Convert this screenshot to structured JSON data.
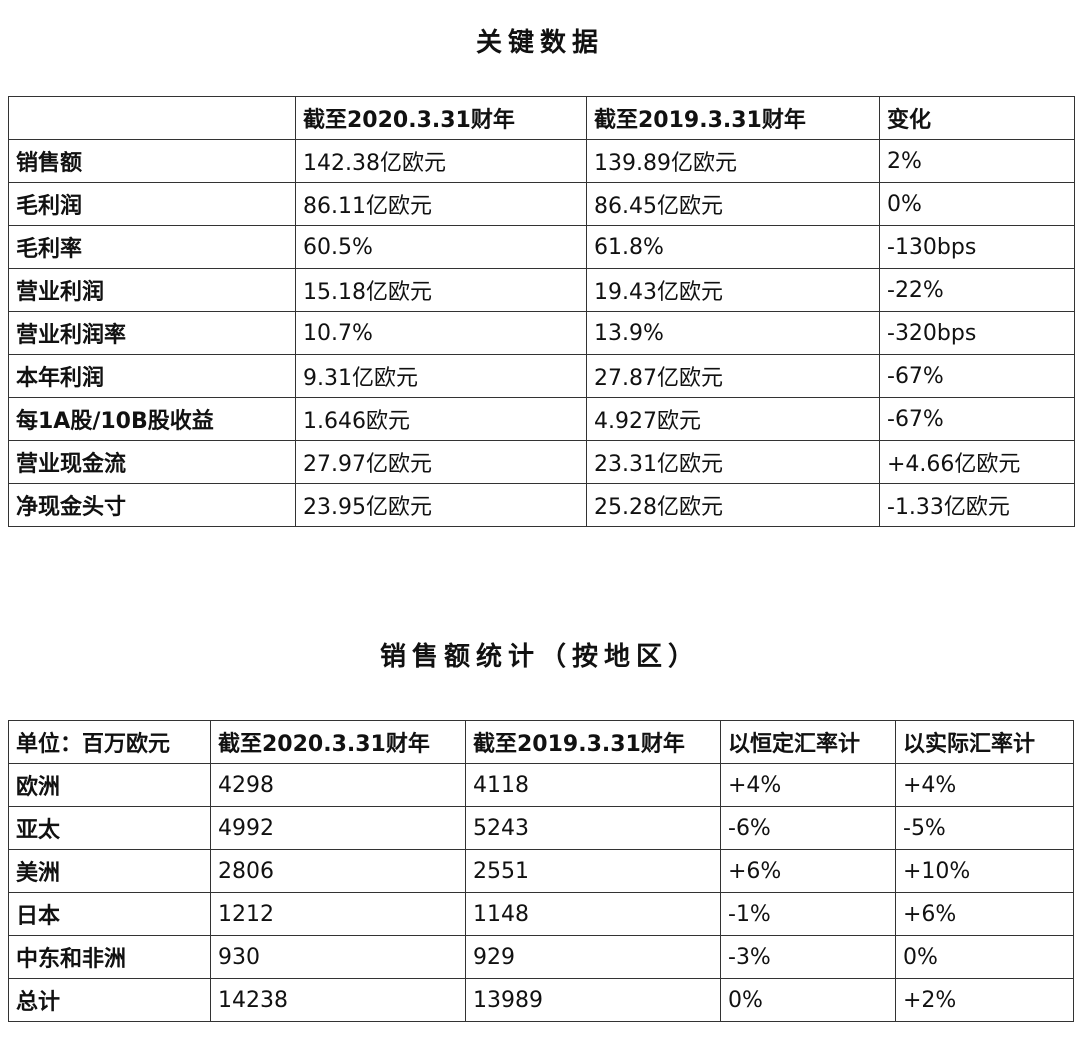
{
  "section1": {
    "title": "关键数据",
    "headers": [
      "",
      "截至2020.3.31财年",
      "截至2019.3.31财年",
      "变化"
    ],
    "rows": [
      [
        "销售额",
        "142.38亿欧元",
        "139.89亿欧元",
        "2%"
      ],
      [
        "毛利润",
        "86.11亿欧元",
        "86.45亿欧元",
        "0%"
      ],
      [
        "毛利率",
        "60.5%",
        "61.8%",
        "-130bps"
      ],
      [
        "营业利润",
        "15.18亿欧元",
        "19.43亿欧元",
        "-22%"
      ],
      [
        "营业利润率",
        "10.7%",
        "13.9%",
        "-320bps"
      ],
      [
        "本年利润",
        "9.31亿欧元",
        "27.87亿欧元",
        "-67%"
      ],
      [
        "每1A股/10B股收益",
        "1.646欧元",
        "4.927欧元",
        "-67%"
      ],
      [
        "营业现金流",
        "27.97亿欧元",
        "23.31亿欧元",
        "+4.66亿欧元"
      ],
      [
        "净现金头寸",
        "23.95亿欧元",
        "25.28亿欧元",
        "-1.33亿欧元"
      ]
    ]
  },
  "section2": {
    "title": "销售额统计（按地区）",
    "headers": [
      "单位：百万欧元",
      "截至2020.3.31财年",
      "截至2019.3.31财年",
      "以恒定汇率计",
      "以实际汇率计"
    ],
    "rows": [
      [
        "欧洲",
        "4298",
        "4118",
        "+4%",
        "+4%"
      ],
      [
        "亚太",
        "4992",
        "5243",
        "-6%",
        "-5%"
      ],
      [
        "美洲",
        "2806",
        "2551",
        "+6%",
        "+10%"
      ],
      [
        "日本",
        "1212",
        "1148",
        "-1%",
        "+6%"
      ],
      [
        "中东和非洲",
        "930",
        "929",
        "-3%",
        "0%"
      ],
      [
        "总计",
        "14238",
        "13989",
        "0%",
        "+2%"
      ]
    ]
  }
}
